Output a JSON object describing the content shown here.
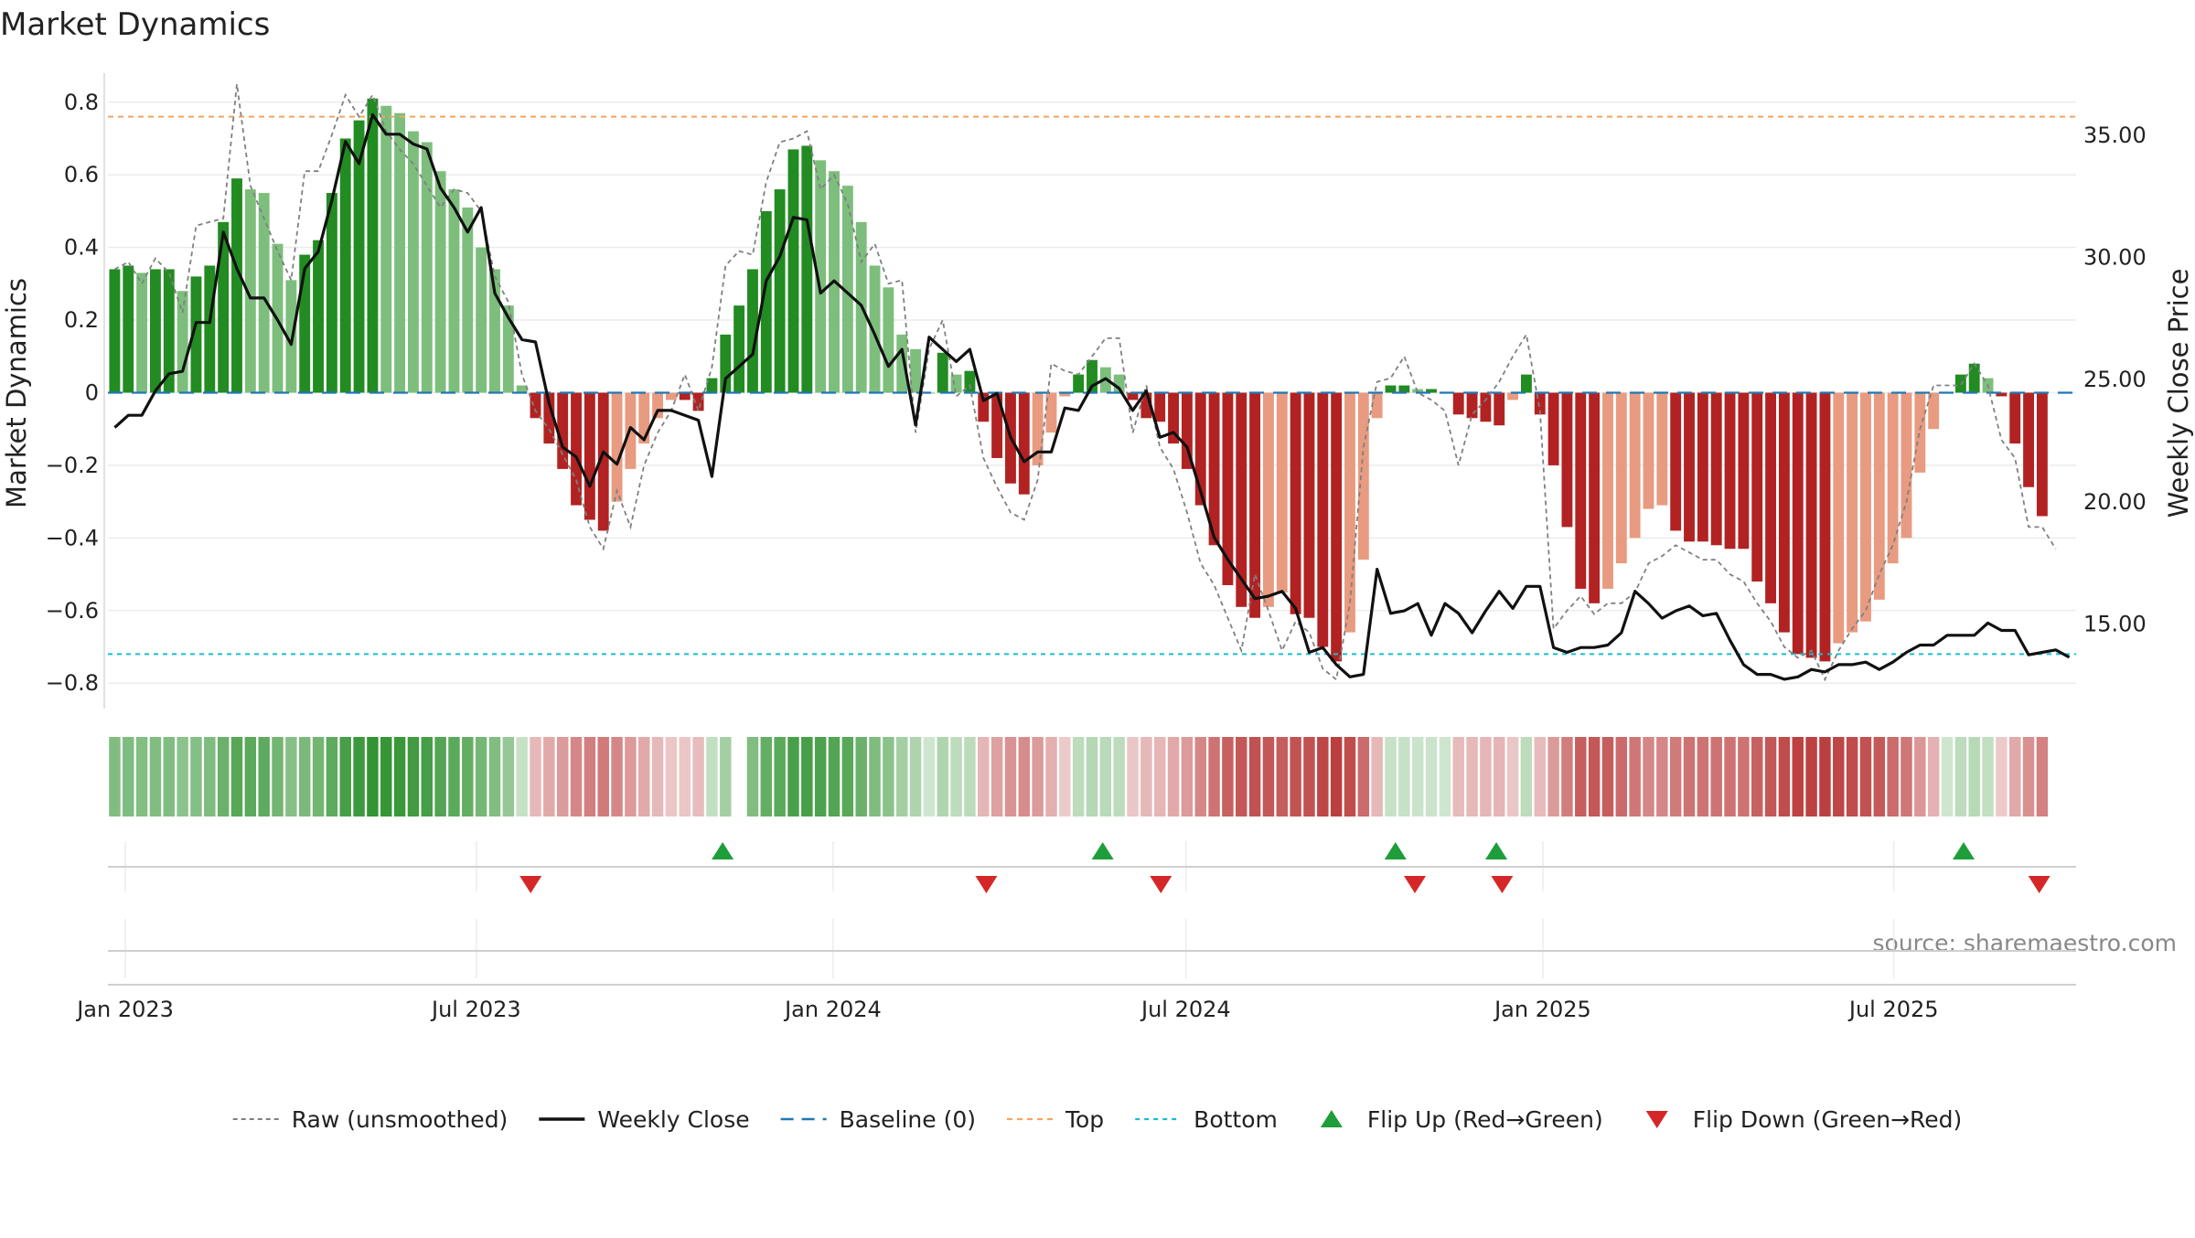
{
  "chart_data": {
    "type": "bar",
    "title": "Market Dynamics",
    "ylabel_left": "Market Dynamics",
    "ylabel_right": "Weekly Close Price",
    "source": "source: sharemaestro.com",
    "ylim": [
      -0.87,
      0.88
    ],
    "y2lim": [
      11.5,
      37.5
    ],
    "yticks": [
      0.8,
      0.6,
      0.4,
      0.2,
      0,
      -0.2,
      -0.4,
      -0.6,
      -0.8
    ],
    "ytick_labels": [
      "0.8",
      "0.6",
      "0.4",
      "0.2",
      "0",
      "−0.2",
      "−0.4",
      "−0.6",
      "−0.8"
    ],
    "y2ticks": [
      35,
      30,
      25,
      20,
      15
    ],
    "y2tick_labels": [
      "35.00",
      "30.00",
      "25.00",
      "20.00",
      "15.00"
    ],
    "x_start": "2022-12-23",
    "x_end": "2025-10-03",
    "xticks": [
      {
        "date": "2023-01-01",
        "label": "Jan 2023"
      },
      {
        "date": "2023-07-01",
        "label": "Jul 2023"
      },
      {
        "date": "2024-01-01",
        "label": "Jan 2024"
      },
      {
        "date": "2024-07-01",
        "label": "Jul 2024"
      },
      {
        "date": "2025-01-01",
        "label": "Jan 2025"
      },
      {
        "date": "2025-07-01",
        "label": "Jul 2025"
      }
    ],
    "top_line": 0.76,
    "bottom_line": -0.72,
    "baseline": 0,
    "first_week": "2022-12-23",
    "dynamics": [
      0.34,
      0.35,
      0.33,
      0.34,
      0.34,
      0.28,
      0.32,
      0.35,
      0.47,
      0.59,
      0.56,
      0.55,
      0.41,
      0.31,
      0.38,
      0.42,
      0.55,
      0.7,
      0.75,
      0.81,
      0.79,
      0.77,
      0.72,
      0.69,
      0.61,
      0.56,
      0.51,
      0.4,
      0.34,
      0.24,
      0.02,
      -0.07,
      -0.14,
      -0.21,
      -0.31,
      -0.35,
      -0.38,
      -0.3,
      -0.21,
      -0.14,
      -0.07,
      -0.02,
      -0.02,
      -0.05,
      0.04,
      0.16,
      0.24,
      0.34,
      0.5,
      0.56,
      0.67,
      0.68,
      0.64,
      0.61,
      0.57,
      0.47,
      0.35,
      0.29,
      0.16,
      0.12,
      0,
      0.11,
      0.05,
      0.06,
      -0.08,
      -0.18,
      -0.25,
      -0.28,
      -0.2,
      -0.11,
      -0.01,
      0.05,
      0.09,
      0.07,
      0.05,
      -0.02,
      -0.07,
      -0.08,
      -0.14,
      -0.21,
      -0.31,
      -0.42,
      -0.53,
      -0.59,
      -0.62,
      -0.59,
      -0.55,
      -0.61,
      -0.62,
      -0.7,
      -0.74,
      -0.66,
      -0.46,
      -0.07,
      0.02,
      0.02,
      0.01,
      0.01,
      0.0,
      -0.06,
      -0.07,
      -0.08,
      -0.09,
      -0.02,
      0.05,
      -0.06,
      -0.2,
      -0.37,
      -0.54,
      -0.58,
      -0.54,
      -0.47,
      -0.4,
      -0.32,
      -0.31,
      -0.38,
      -0.41,
      -0.41,
      -0.42,
      -0.43,
      -0.43,
      -0.52,
      -0.58,
      -0.66,
      -0.72,
      -0.73,
      -0.74,
      -0.69,
      -0.66,
      -0.63,
      -0.57,
      -0.47,
      -0.4,
      -0.22,
      -0.1,
      0,
      0.05,
      0.08,
      0.04,
      -0.01,
      -0.14,
      -0.26,
      -0.34
    ],
    "raw": [
      0.34,
      0.36,
      0.3,
      0.37,
      0.33,
      0.22,
      0.46,
      0.47,
      0.48,
      0.85,
      0.57,
      0.48,
      0.39,
      0.31,
      0.61,
      0.61,
      0.71,
      0.82,
      0.76,
      0.82,
      0.72,
      0.67,
      0.63,
      0.57,
      0.51,
      0.56,
      0.55,
      0.5,
      0.32,
      0.25,
      0.05,
      -0.05,
      -0.1,
      -0.17,
      -0.24,
      -0.37,
      -0.43,
      -0.27,
      -0.37,
      -0.2,
      -0.11,
      -0.05,
      0.05,
      -0.05,
      0.07,
      0.35,
      0.39,
      0.38,
      0.58,
      0.69,
      0.7,
      0.72,
      0.56,
      0.6,
      0.52,
      0.36,
      0.41,
      0.3,
      0.31,
      -0.11,
      0.12,
      0.2,
      -0.01,
      0.02,
      -0.18,
      -0.26,
      -0.33,
      -0.35,
      -0.24,
      0.08,
      0.06,
      0.05,
      0.1,
      0.15,
      0.15,
      -0.11,
      0.02,
      -0.15,
      -0.21,
      -0.33,
      -0.47,
      -0.53,
      -0.62,
      -0.71,
      -0.5,
      -0.6,
      -0.71,
      -0.63,
      -0.66,
      -0.76,
      -0.79,
      -0.58,
      -0.15,
      0.03,
      0.04,
      0.1,
      0.0,
      -0.02,
      -0.05,
      -0.2,
      -0.06,
      -0.02,
      0.03,
      0.1,
      0.16,
      -0.05,
      -0.65,
      -0.6,
      -0.56,
      -0.61,
      -0.58,
      -0.58,
      -0.55,
      -0.47,
      -0.45,
      -0.42,
      -0.44,
      -0.46,
      -0.46,
      -0.5,
      -0.52,
      -0.58,
      -0.63,
      -0.7,
      -0.73,
      -0.71,
      -0.79,
      -0.71,
      -0.65,
      -0.6,
      -0.5,
      -0.42,
      -0.3,
      -0.1,
      0.02,
      0.02,
      0.02,
      0.08,
      0.02,
      -0.13,
      -0.18,
      -0.37,
      -0.37,
      -0.43
    ],
    "close": [
      23.0,
      23.5,
      23.5,
      24.5,
      25.2,
      25.3,
      27.3,
      27.3,
      31.0,
      29.5,
      28.3,
      28.3,
      27.4,
      26.4,
      29.5,
      30.2,
      32.3,
      34.7,
      33.8,
      35.8,
      35.0,
      35.0,
      34.6,
      34.4,
      32.8,
      32.0,
      31.0,
      32.0,
      28.5,
      27.5,
      26.6,
      26.5,
      24.0,
      22.2,
      21.8,
      20.6,
      22.0,
      21.5,
      23.0,
      22.5,
      23.7,
      23.7,
      23.5,
      23.3,
      21.0,
      25.0,
      25.5,
      26.0,
      29.0,
      30.0,
      31.6,
      31.5,
      28.5,
      29.0,
      28.5,
      28.0,
      26.8,
      25.5,
      26.2,
      23.1,
      26.7,
      26.2,
      25.7,
      26.2,
      24.1,
      24.4,
      22.6,
      21.6,
      22.0,
      22.0,
      23.8,
      23.7,
      24.7,
      25.0,
      24.6,
      23.7,
      24.5,
      22.6,
      22.8,
      22.2,
      20.4,
      18.5,
      17.6,
      16.8,
      16.0,
      16.1,
      16.3,
      15.6,
      13.8,
      14.0,
      13.3,
      12.8,
      12.9,
      17.2,
      15.4,
      15.5,
      15.8,
      14.5,
      15.8,
      15.4,
      14.6,
      15.5,
      16.3,
      15.6,
      16.5,
      16.5,
      14.0,
      13.8,
      14.0,
      14.0,
      14.1,
      14.6,
      16.3,
      15.8,
      15.2,
      15.5,
      15.7,
      15.3,
      15.4,
      14.3,
      13.3,
      12.9,
      12.9,
      12.7,
      12.8,
      13.1,
      13.0,
      13.3,
      13.3,
      13.4,
      13.1,
      13.4,
      13.8,
      14.1,
      14.1,
      14.5,
      14.5,
      14.5,
      15.0,
      14.7,
      14.7,
      13.7,
      13.8,
      13.9,
      13.6
    ],
    "regime_gap_weeks": [
      46
    ],
    "flips": [
      {
        "dir": "down",
        "date": "2023-07-29"
      },
      {
        "dir": "up",
        "date": "2023-11-05"
      },
      {
        "dir": "down",
        "date": "2024-03-20"
      },
      {
        "dir": "up",
        "date": "2024-05-19"
      },
      {
        "dir": "down",
        "date": "2024-06-18"
      },
      {
        "dir": "up",
        "date": "2024-10-17"
      },
      {
        "dir": "down",
        "date": "2024-10-27"
      },
      {
        "dir": "up",
        "date": "2024-12-08"
      },
      {
        "dir": "down",
        "date": "2024-12-11"
      },
      {
        "dir": "up",
        "date": "2025-08-06"
      },
      {
        "dir": "down",
        "date": "2025-09-14"
      }
    ],
    "legend": [
      {
        "key": "raw",
        "label": "Raw (unsmoothed)"
      },
      {
        "key": "close",
        "label": "Weekly Close"
      },
      {
        "key": "base",
        "label": "Baseline (0)"
      },
      {
        "key": "top",
        "label": "Top"
      },
      {
        "key": "bottom",
        "label": "Bottom"
      },
      {
        "key": "up",
        "label": "Flip Up (Red→Green)"
      },
      {
        "key": "down",
        "label": "Flip Down (Green→Red)"
      }
    ],
    "colors": {
      "green_strong": "#228B22",
      "green_weak": "#7DBE7D",
      "red_strong": "#B22222",
      "red_weak": "#E89B80",
      "raw": "#808080",
      "close": "#111111",
      "baseline": "#1f77b4",
      "top": "#F4A460",
      "bottom": "#17BECF",
      "flip_up": "#1E9E3A",
      "flip_down": "#D62728"
    }
  }
}
